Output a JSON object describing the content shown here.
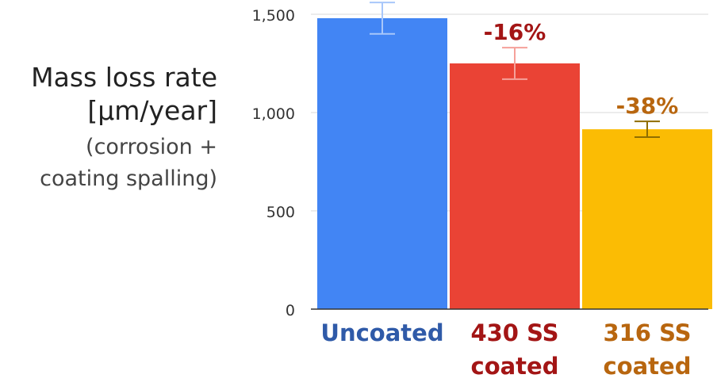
{
  "chart_data": {
    "type": "bar",
    "categories": [
      "Uncoated",
      "430 SS coated",
      "316 SS coated"
    ],
    "category_label_lines": [
      [
        "Uncoated"
      ],
      [
        "430 SS",
        "coated"
      ],
      [
        "316 SS",
        "coated"
      ]
    ],
    "values": [
      1480,
      1250,
      915
    ],
    "error_low": [
      1400,
      1170,
      875
    ],
    "error_high": [
      1560,
      1330,
      955
    ],
    "bar_colors": [
      "#4285f4",
      "#ea4335",
      "#fbbc04"
    ],
    "error_colors": [
      "#a8c7fa",
      "#f5a19a",
      "#8f6d00"
    ],
    "label_colors": [
      "#2f5aa8",
      "#a31515",
      "#b8660f"
    ],
    "annotations": [
      "",
      "-16%",
      "-38%"
    ],
    "ylabel_lines": [
      "Mass loss rate",
      "[µm/year]",
      "(corrosion +",
      "coating spalling)"
    ],
    "yticks": [
      0,
      500,
      1000,
      1500
    ],
    "ytick_labels": [
      "0",
      "500",
      "1,000",
      "1,500"
    ],
    "ylim": [
      0,
      1550
    ],
    "grid": true,
    "xlabel": "",
    "title": ""
  }
}
